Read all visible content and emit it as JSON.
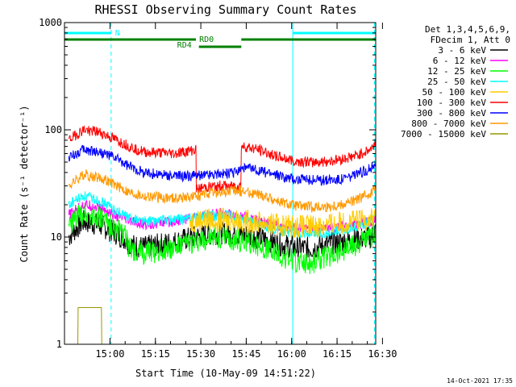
{
  "chart_data": {
    "type": "line",
    "title": "RHESSI Observing Summary Count Rates",
    "xlabel": "Start Time (10-May-09 14:51:22)",
    "ylabel": "Count Rate (s⁻¹ detector⁻¹)",
    "yscale": "log",
    "ylim": [
      1,
      1000
    ],
    "xlim_minutes": [
      -6.4,
      96.4
    ],
    "x_tick_labels": [
      "15:00",
      "15:15",
      "15:30",
      "15:45",
      "16:00",
      "16:15",
      "16:30"
    ],
    "y_tick_labels": [
      "1",
      "10",
      "100",
      "1000"
    ],
    "legend_header": [
      "Det 1,3,4,5,6,9,",
      "FDecim 1, Att 0"
    ],
    "series": [
      {
        "name": "3 - 6 keV",
        "color": "#000000",
        "x": [
          -5,
          0,
          5,
          10,
          14,
          15,
          20,
          30,
          40,
          45,
          50,
          55,
          60,
          65,
          70,
          75,
          80,
          85,
          90,
          95,
          96.4
        ],
        "values": [
          10,
          14,
          13,
          11,
          9.5,
          8.5,
          8,
          9,
          10.5,
          11,
          10.7,
          10.3,
          9.5,
          8.5,
          8,
          7.8,
          8.5,
          9,
          9.5,
          10,
          12
        ]
      },
      {
        "name": "6 - 12 keV",
        "color": "#ff00ff",
        "x": [
          -5,
          0,
          5,
          10,
          15,
          20,
          30,
          40,
          45,
          50,
          55,
          60,
          65,
          70,
          75,
          80,
          85,
          90,
          95,
          96.4
        ],
        "values": [
          16,
          20,
          19,
          16,
          14,
          13,
          14,
          16,
          16.5,
          16,
          15,
          13.5,
          12.5,
          12,
          11.8,
          12,
          12.5,
          13,
          14,
          15
        ]
      },
      {
        "name": "12 - 25 keV",
        "color": "#00ff00",
        "x": [
          -5,
          0,
          5,
          10,
          14,
          15,
          20,
          30,
          40,
          45,
          50,
          55,
          60,
          65,
          70,
          75,
          80,
          85,
          90,
          95,
          96.4
        ],
        "values": [
          13,
          17,
          15,
          12,
          10,
          8,
          7,
          8,
          9.5,
          10,
          9.5,
          9,
          8,
          6.5,
          6,
          5.8,
          6.5,
          7.5,
          8.5,
          10,
          12
        ]
      },
      {
        "name": "25 - 50 keV",
        "color": "#00ffff",
        "x": [
          -5,
          0,
          5,
          10,
          15,
          20,
          30,
          40,
          45,
          50,
          55,
          60,
          65,
          70,
          75,
          80,
          85,
          90,
          95,
          96.4
        ],
        "values": [
          20,
          24,
          22,
          18,
          15,
          14,
          14.5,
          15.5,
          16,
          15.5,
          14,
          12.5,
          11.5,
          11,
          10.8,
          11,
          11.5,
          12.5,
          14,
          16
        ]
      },
      {
        "name": "50 - 100 keV",
        "color": "#ffcc00",
        "x": [
          35,
          40,
          45,
          50,
          55,
          60,
          65,
          70,
          75,
          80,
          85,
          90,
          95,
          96.4
        ],
        "values": [
          14,
          14.5,
          14.5,
          14.3,
          14,
          13.5,
          13,
          12.5,
          12.5,
          13,
          13.5,
          14,
          15,
          16
        ]
      },
      {
        "name": "100 - 300 keV",
        "color": "#ff0000",
        "x": [
          -5,
          0,
          5,
          10,
          15,
          20,
          30,
          37,
          37.1,
          40,
          45,
          50,
          51.9,
          52,
          55,
          60,
          65,
          70,
          75,
          80,
          85,
          90,
          95,
          96.4
        ],
        "values": [
          80,
          100,
          95,
          82,
          70,
          62,
          60,
          65,
          28,
          29,
          30,
          30,
          30,
          70,
          68,
          62,
          55,
          51,
          50,
          50.5,
          53,
          57,
          66,
          78
        ]
      },
      {
        "name": "300 - 800 keV",
        "color": "#0000ff",
        "x": [
          -5,
          0,
          5,
          10,
          15,
          20,
          30,
          37,
          40,
          45,
          50,
          52,
          55,
          60,
          65,
          70,
          75,
          80,
          85,
          90,
          95,
          96.4
        ],
        "values": [
          55,
          65,
          62,
          55,
          45,
          40,
          37,
          37,
          38,
          39,
          40,
          44,
          43,
          40,
          37,
          35,
          34,
          34,
          35,
          38,
          44,
          50
        ]
      },
      {
        "name": "800 - 7000 keV",
        "color": "#ff9900",
        "x": [
          -5,
          0,
          5,
          10,
          15,
          20,
          30,
          37,
          40,
          45,
          50,
          52,
          55,
          60,
          65,
          70,
          75,
          80,
          85,
          90,
          95,
          96.4
        ],
        "values": [
          30,
          38,
          36,
          31,
          26,
          24,
          23,
          24,
          25,
          26,
          27,
          27,
          26,
          24,
          21,
          19.5,
          19,
          19,
          20,
          22,
          26,
          29
        ]
      },
      {
        "name": "7000 - 15000 keV",
        "color": "#999900",
        "x": [
          -2,
          -1.9,
          3,
          3.1,
          5.8,
          5.9
        ],
        "values": [
          1,
          2.2,
          2.2,
          2.2,
          2.2,
          1
        ]
      }
    ],
    "vertical_markers": [
      {
        "x_minutes": -6.4,
        "style": "solid",
        "color": "#00ffff"
      },
      {
        "x_minutes": 9.0,
        "style": "dashed",
        "color": "#00ffff"
      },
      {
        "x_minutes": 69.0,
        "style": "solid",
        "color": "#00ffff"
      },
      {
        "x_minutes": 96.0,
        "style": "dashed",
        "color": "#00ffff"
      }
    ],
    "flag_bars": [
      {
        "label": "N",
        "color": "#00ffff",
        "level": "top",
        "segments": [
          [
            -6.4,
            9.0
          ],
          [
            69.0,
            96.4
          ]
        ]
      },
      {
        "label": "RD0",
        "color": "#008000",
        "level": "upper",
        "segments": [
          [
            -6.4,
            37.0
          ],
          [
            52.0,
            96.4
          ]
        ]
      },
      {
        "label": "RD4",
        "color": "#008000",
        "level": "lower",
        "segments": [
          [
            38.0,
            52.0
          ]
        ]
      }
    ],
    "footer_date": "14-Oct-2021 17:35"
  }
}
